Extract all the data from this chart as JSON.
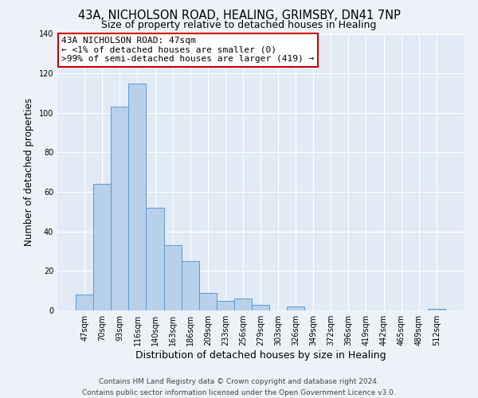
{
  "title_line1": "43A, NICHOLSON ROAD, HEALING, GRIMSBY, DN41 7NP",
  "title_line2": "Size of property relative to detached houses in Healing",
  "xlabel": "Distribution of detached houses by size in Healing",
  "ylabel": "Number of detached properties",
  "bar_labels": [
    "47sqm",
    "70sqm",
    "93sqm",
    "116sqm",
    "140sqm",
    "163sqm",
    "186sqm",
    "209sqm",
    "233sqm",
    "256sqm",
    "279sqm",
    "303sqm",
    "326sqm",
    "349sqm",
    "372sqm",
    "396sqm",
    "419sqm",
    "442sqm",
    "465sqm",
    "489sqm",
    "512sqm"
  ],
  "bar_values": [
    8,
    64,
    103,
    115,
    52,
    33,
    25,
    9,
    5,
    6,
    3,
    0,
    2,
    0,
    0,
    0,
    0,
    0,
    0,
    0,
    1
  ],
  "bar_color": "#b8d0ea",
  "bar_edge_color": "#5b9bd5",
  "ylim": [
    0,
    140
  ],
  "yticks": [
    0,
    20,
    40,
    60,
    80,
    100,
    120,
    140
  ],
  "annotation_box_text_line1": "43A NICHOLSON ROAD: 47sqm",
  "annotation_box_text_line2": "← <1% of detached houses are smaller (0)",
  "annotation_box_text_line3": ">99% of semi-detached houses are larger (419) →",
  "annotation_box_color": "white",
  "annotation_box_edge_color": "#cc0000",
  "footer_line1": "Contains HM Land Registry data © Crown copyright and database right 2024.",
  "footer_line2": "Contains public sector information licensed under the Open Government Licence v3.0.",
  "bg_color": "#eef2f8",
  "plot_bg_color": "#e2eaf5",
  "grid_color": "#ffffff",
  "title1_fontsize": 10.5,
  "title2_fontsize": 9,
  "ylabel_fontsize": 8.5,
  "xlabel_fontsize": 9,
  "tick_fontsize": 7,
  "annot_fontsize": 8,
  "footer_fontsize": 6.5
}
